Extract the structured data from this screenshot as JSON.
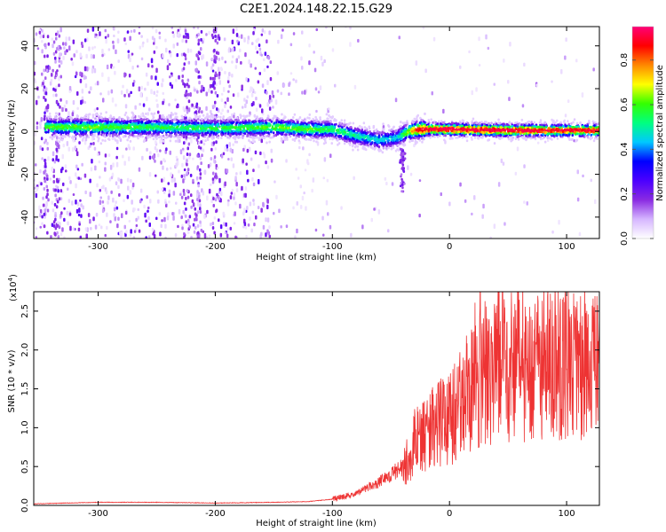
{
  "title": "C2E1.2024.148.22.15.G29",
  "chart_data": [
    {
      "type": "heatmap",
      "xlabel": "Height of straight line (km)",
      "ylabel": "Frequency (Hz)",
      "xlim": [
        -355,
        128
      ],
      "ylim": [
        -50,
        49
      ],
      "x_ticks": [
        -300,
        -200,
        -100,
        0,
        100
      ],
      "x_tick_labels": [
        "-300",
        "-200",
        "-100",
        "0",
        "100"
      ],
      "y_ticks": [
        40,
        20,
        0,
        -20,
        -40
      ],
      "y_tick_labels": [
        "40",
        "20",
        "0",
        "-20",
        "-40"
      ],
      "colorbar": {
        "label": "Normalized spectral amplitude",
        "range": [
          0,
          0.95
        ],
        "ticks": [
          0.0,
          0.2,
          0.4,
          0.6,
          0.8
        ],
        "tick_labels": [
          "0.0",
          "0.2",
          "0.4",
          "0.6",
          "0.8"
        ],
        "colors": [
          "#ffffff",
          "#d6b6ff",
          "#8a2be2",
          "#4b00ff",
          "#0000ff",
          "#00c8ff",
          "#00ff80",
          "#33ff00",
          "#ffff00",
          "#ff8800",
          "#ff0000",
          "#ff0077"
        ]
      },
      "ridge": {
        "x": [
          -340,
          -300,
          -250,
          -200,
          -150,
          -120,
          -100,
          -80,
          -60,
          -45,
          -35,
          -25,
          0,
          50,
          100,
          128
        ],
        "freq": [
          2,
          2,
          2,
          1.5,
          2,
          1,
          1,
          -2,
          -4,
          -3,
          0,
          1,
          1,
          0.5,
          0.5,
          0.5
        ],
        "amplitude": [
          0.5,
          0.5,
          0.45,
          0.45,
          0.5,
          0.5,
          0.45,
          0.4,
          0.35,
          0.35,
          0.55,
          0.8,
          0.85,
          0.85,
          0.8,
          0.8
        ]
      }
    },
    {
      "type": "line",
      "xlabel": "Height of straight line (km)",
      "ylabel": "SNR (10 * v/v)",
      "y_scale_label": "(x10",
      "y_scale_exp": "4",
      "y_scale_close": ")",
      "xlim": [
        -355,
        128
      ],
      "ylim": [
        0,
        2.75
      ],
      "x_ticks": [
        -300,
        -200,
        -100,
        0,
        100
      ],
      "x_tick_labels": [
        "-300",
        "-200",
        "-100",
        "0",
        "100"
      ],
      "y_ticks": [
        0.0,
        0.5,
        1.0,
        1.5,
        2.0,
        2.5
      ],
      "y_tick_labels": [
        "0.0",
        "0.5",
        "1.0",
        "1.5",
        "2.0",
        "2.5"
      ],
      "color": "#ee3333",
      "series": [
        {
          "x": [
            -355,
            -300,
            -250,
            -200,
            -150,
            -120,
            -100,
            -80,
            -60,
            -40,
            -30,
            -20,
            -10,
            0,
            10,
            20,
            30,
            40,
            60,
            80,
            100,
            128
          ],
          "values": [
            0.02,
            0.04,
            0.04,
            0.03,
            0.04,
            0.05,
            0.08,
            0.15,
            0.3,
            0.5,
            0.8,
            0.9,
            1.05,
            1.1,
            1.35,
            1.55,
            1.7,
            1.75,
            1.8,
            1.8,
            1.8,
            1.75
          ]
        }
      ]
    }
  ]
}
